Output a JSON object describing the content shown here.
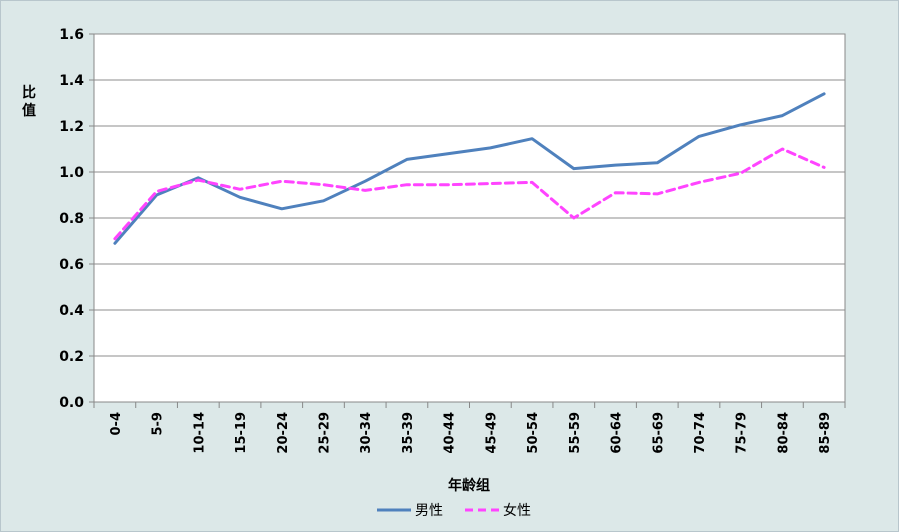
{
  "chart_data": {
    "type": "line",
    "title": "",
    "xlabel": "年龄组",
    "ylabel": "比值",
    "ylim": [
      0,
      1.6
    ],
    "ytick_step": 0.2,
    "ytick_labels": [
      "0.0",
      "0.2",
      "0.4",
      "0.6",
      "0.8",
      "1.0",
      "1.2",
      "1.4",
      "1.6"
    ],
    "grid": true,
    "legend_position": "bottom",
    "categories": [
      "0-4",
      "5-9",
      "10-14",
      "15-19",
      "20-24",
      "25-29",
      "30-34",
      "35-39",
      "40-44",
      "45-49",
      "50-54",
      "55-59",
      "60-64",
      "65-69",
      "70-74",
      "75-79",
      "80-84",
      "85-89"
    ],
    "series": [
      {
        "name": "男性",
        "color": "#4f81bd",
        "dash": "solid",
        "values": [
          0.69,
          0.9,
          0.975,
          0.89,
          0.84,
          0.875,
          0.96,
          1.055,
          1.08,
          1.105,
          1.145,
          1.015,
          1.03,
          1.04,
          1.155,
          1.205,
          1.245,
          1.34
        ]
      },
      {
        "name": "女性",
        "color": "#ff44ff",
        "dash": "dashed",
        "values": [
          0.71,
          0.915,
          0.965,
          0.925,
          0.96,
          0.945,
          0.92,
          0.945,
          0.945,
          0.95,
          0.955,
          0.8,
          0.91,
          0.905,
          0.955,
          0.995,
          1.1,
          1.02
        ]
      }
    ]
  }
}
